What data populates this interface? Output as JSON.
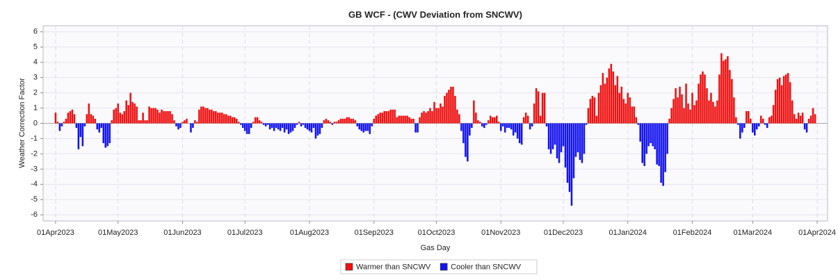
{
  "chart_data": {
    "type": "bar",
    "title": "GB WCF - (CWV Deviation from SNCWV)",
    "xlabel": "Gas Day",
    "ylabel": "Weather Correction Factor",
    "legend": [
      {
        "name": "Warmer than SNCWV",
        "color": "#ee1111"
      },
      {
        "name": "Cooler than SNCWV",
        "color": "#1414ee"
      }
    ],
    "grid": true,
    "xlim": [
      "2023-03-26",
      "2024-04-06"
    ],
    "ylim": [
      -6.4,
      6.4
    ],
    "yticks": [
      -6,
      -5,
      -4,
      -3,
      -2,
      -1,
      0,
      1,
      2,
      3,
      4,
      5,
      6
    ],
    "xticks": [
      {
        "value": "2023-04-01",
        "label": "01Apr2023"
      },
      {
        "value": "2023-05-01",
        "label": "01May2023"
      },
      {
        "value": "2023-06-01",
        "label": "01Jun2023"
      },
      {
        "value": "2023-07-01",
        "label": "01Jul2023"
      },
      {
        "value": "2023-08-01",
        "label": "01Aug2023"
      },
      {
        "value": "2023-09-01",
        "label": "01Sep2023"
      },
      {
        "value": "2023-10-01",
        "label": "01Oct2023"
      },
      {
        "value": "2023-11-01",
        "label": "01Nov2023"
      },
      {
        "value": "2023-12-01",
        "label": "01Dec2023"
      },
      {
        "value": "2024-01-01",
        "label": "01Jan2024"
      },
      {
        "value": "2024-02-01",
        "label": "01Feb2024"
      },
      {
        "value": "2024-03-01",
        "label": "01Mar2024"
      },
      {
        "value": "2024-04-01",
        "label": "01Apr2024"
      }
    ],
    "x": [
      "2023-04-01",
      "2023-04-02",
      "2023-04-03",
      "2023-04-04",
      "2023-04-05",
      "2023-04-06",
      "2023-04-07",
      "2023-04-08",
      "2023-04-09",
      "2023-04-10",
      "2023-04-11",
      "2023-04-12",
      "2023-04-13",
      "2023-04-14",
      "2023-04-15",
      "2023-04-16",
      "2023-04-17",
      "2023-04-18",
      "2023-04-19",
      "2023-04-20",
      "2023-04-21",
      "2023-04-22",
      "2023-04-23",
      "2023-04-24",
      "2023-04-25",
      "2023-04-26",
      "2023-04-27",
      "2023-04-28",
      "2023-04-29",
      "2023-04-30",
      "2023-05-01",
      "2023-05-02",
      "2023-05-03",
      "2023-05-04",
      "2023-05-05",
      "2023-05-06",
      "2023-05-07",
      "2023-05-08",
      "2023-05-09",
      "2023-05-10",
      "2023-05-11",
      "2023-05-12",
      "2023-05-13",
      "2023-05-14",
      "2023-05-15",
      "2023-05-16",
      "2023-05-17",
      "2023-05-18",
      "2023-05-19",
      "2023-05-20",
      "2023-05-21",
      "2023-05-22",
      "2023-05-23",
      "2023-05-24",
      "2023-05-25",
      "2023-05-26",
      "2023-05-27",
      "2023-05-28",
      "2023-05-29",
      "2023-05-30",
      "2023-05-31",
      "2023-06-01",
      "2023-06-02",
      "2023-06-03",
      "2023-06-04",
      "2023-06-05",
      "2023-06-06",
      "2023-06-07",
      "2023-06-08",
      "2023-06-09",
      "2023-06-10",
      "2023-06-11",
      "2023-06-12",
      "2023-06-13",
      "2023-06-14",
      "2023-06-15",
      "2023-06-16",
      "2023-06-17",
      "2023-06-18",
      "2023-06-19",
      "2023-06-20",
      "2023-06-21",
      "2023-06-22",
      "2023-06-23",
      "2023-06-24",
      "2023-06-25",
      "2023-06-26",
      "2023-06-27",
      "2023-06-28",
      "2023-06-29",
      "2023-06-30",
      "2023-07-01",
      "2023-07-02",
      "2023-07-03",
      "2023-07-04",
      "2023-07-05",
      "2023-07-06",
      "2023-07-07",
      "2023-07-08",
      "2023-07-09",
      "2023-07-10",
      "2023-07-11",
      "2023-07-12",
      "2023-07-13",
      "2023-07-14",
      "2023-07-15",
      "2023-07-16",
      "2023-07-17",
      "2023-07-18",
      "2023-07-19",
      "2023-07-20",
      "2023-07-21",
      "2023-07-22",
      "2023-07-23",
      "2023-07-24",
      "2023-07-25",
      "2023-07-26",
      "2023-07-27",
      "2023-07-28",
      "2023-07-29",
      "2023-07-30",
      "2023-07-31",
      "2023-08-01",
      "2023-08-02",
      "2023-08-03",
      "2023-08-04",
      "2023-08-05",
      "2023-08-06",
      "2023-08-07",
      "2023-08-08",
      "2023-08-09",
      "2023-08-10",
      "2023-08-11",
      "2023-08-12",
      "2023-08-13",
      "2023-08-14",
      "2023-08-15",
      "2023-08-16",
      "2023-08-17",
      "2023-08-18",
      "2023-08-19",
      "2023-08-20",
      "2023-08-21",
      "2023-08-22",
      "2023-08-23",
      "2023-08-24",
      "2023-08-25",
      "2023-08-26",
      "2023-08-27",
      "2023-08-28",
      "2023-08-29",
      "2023-08-30",
      "2023-08-31",
      "2023-09-01",
      "2023-09-02",
      "2023-09-03",
      "2023-09-04",
      "2023-09-05",
      "2023-09-06",
      "2023-09-07",
      "2023-09-08",
      "2023-09-09",
      "2023-09-10",
      "2023-09-11",
      "2023-09-12",
      "2023-09-13",
      "2023-09-14",
      "2023-09-15",
      "2023-09-16",
      "2023-09-17",
      "2023-09-18",
      "2023-09-19",
      "2023-09-20",
      "2023-09-21",
      "2023-09-22",
      "2023-09-23",
      "2023-09-24",
      "2023-09-25",
      "2023-09-26",
      "2023-09-27",
      "2023-09-28",
      "2023-09-29",
      "2023-09-30",
      "2023-10-01",
      "2023-10-02",
      "2023-10-03",
      "2023-10-04",
      "2023-10-05",
      "2023-10-06",
      "2023-10-07",
      "2023-10-08",
      "2023-10-09",
      "2023-10-10",
      "2023-10-11",
      "2023-10-12",
      "2023-10-13",
      "2023-10-14",
      "2023-10-15",
      "2023-10-16",
      "2023-10-17",
      "2023-10-18",
      "2023-10-19",
      "2023-10-20",
      "2023-10-21",
      "2023-10-22",
      "2023-10-23",
      "2023-10-24",
      "2023-10-25",
      "2023-10-26",
      "2023-10-27",
      "2023-10-28",
      "2023-10-29",
      "2023-10-30",
      "2023-10-31",
      "2023-11-01",
      "2023-11-02",
      "2023-11-03",
      "2023-11-04",
      "2023-11-05",
      "2023-11-06",
      "2023-11-07",
      "2023-11-08",
      "2023-11-09",
      "2023-11-10",
      "2023-11-11",
      "2023-11-12",
      "2023-11-13",
      "2023-11-14",
      "2023-11-15",
      "2023-11-16",
      "2023-11-17",
      "2023-11-18",
      "2023-11-19",
      "2023-11-20",
      "2023-11-21",
      "2023-11-22",
      "2023-11-23",
      "2023-11-24",
      "2023-11-25",
      "2023-11-26",
      "2023-11-27",
      "2023-11-28",
      "2023-11-29",
      "2023-11-30",
      "2023-12-01",
      "2023-12-02",
      "2023-12-03",
      "2023-12-04",
      "2023-12-05",
      "2023-12-06",
      "2023-12-07",
      "2023-12-08",
      "2023-12-09",
      "2023-12-10",
      "2023-12-11",
      "2023-12-12",
      "2023-12-13",
      "2023-12-14",
      "2023-12-15",
      "2023-12-16",
      "2023-12-17",
      "2023-12-18",
      "2023-12-19",
      "2023-12-20",
      "2023-12-21",
      "2023-12-22",
      "2023-12-23",
      "2023-12-24",
      "2023-12-25",
      "2023-12-26",
      "2023-12-27",
      "2023-12-28",
      "2023-12-29",
      "2023-12-30",
      "2023-12-31",
      "2024-01-01",
      "2024-01-02",
      "2024-01-03",
      "2024-01-04",
      "2024-01-05",
      "2024-01-06",
      "2024-01-07",
      "2024-01-08",
      "2024-01-09",
      "2024-01-10",
      "2024-01-11",
      "2024-01-12",
      "2024-01-13",
      "2024-01-14",
      "2024-01-15",
      "2024-01-16",
      "2024-01-17",
      "2024-01-18",
      "2024-01-19",
      "2024-01-20",
      "2024-01-21",
      "2024-01-22",
      "2024-01-23",
      "2024-01-24",
      "2024-01-25",
      "2024-01-26",
      "2024-01-27",
      "2024-01-28",
      "2024-01-29",
      "2024-01-30",
      "2024-01-31",
      "2024-02-01",
      "2024-02-02",
      "2024-02-03",
      "2024-02-04",
      "2024-02-05",
      "2024-02-06",
      "2024-02-07",
      "2024-02-08",
      "2024-02-09",
      "2024-02-10",
      "2024-02-11",
      "2024-02-12",
      "2024-02-13",
      "2024-02-14",
      "2024-02-15",
      "2024-02-16",
      "2024-02-17",
      "2024-02-18",
      "2024-02-19",
      "2024-02-20",
      "2024-02-21",
      "2024-02-22",
      "2024-02-23",
      "2024-02-24",
      "2024-02-25",
      "2024-02-26",
      "2024-02-27",
      "2024-02-28",
      "2024-02-29",
      "2024-03-01",
      "2024-03-02",
      "2024-03-03",
      "2024-03-04",
      "2024-03-05",
      "2024-03-06",
      "2024-03-07",
      "2024-03-08",
      "2024-03-09",
      "2024-03-10",
      "2024-03-11",
      "2024-03-12",
      "2024-03-13",
      "2024-03-14",
      "2024-03-15",
      "2024-03-16",
      "2024-03-17",
      "2024-03-18",
      "2024-03-19",
      "2024-03-20",
      "2024-03-21",
      "2024-03-22",
      "2024-03-23",
      "2024-03-24",
      "2024-03-25",
      "2024-03-26",
      "2024-03-27",
      "2024-03-28",
      "2024-03-29",
      "2024-03-30",
      "2024-03-31"
    ],
    "values": [
      0.7,
      0.1,
      -0.5,
      -0.2,
      0.1,
      0.3,
      0.7,
      0.8,
      0.9,
      0.6,
      -0.3,
      -1.7,
      -0.9,
      -1.5,
      -0.2,
      0.6,
      1.3,
      0.6,
      0.5,
      0.3,
      -0.4,
      -0.6,
      -0.3,
      -1.3,
      -1.6,
      -1.5,
      -1.3,
      0.2,
      0.9,
      1.0,
      1.3,
      0.7,
      0.6,
      0.8,
      1.5,
      1.2,
      2.0,
      1.4,
      1.3,
      1.1,
      0.2,
      0.2,
      0.7,
      0.2,
      0.2,
      1.1,
      1.0,
      1.0,
      1.0,
      0.9,
      0.7,
      0.9,
      0.8,
      0.8,
      0.8,
      0.8,
      0.6,
      0.2,
      -0.2,
      -0.4,
      -0.3,
      0.1,
      0.2,
      0.3,
      0.0,
      -0.6,
      -0.3,
      0.2,
      0.1,
      0.9,
      1.1,
      1.1,
      1.0,
      1.0,
      0.9,
      0.9,
      0.8,
      0.8,
      0.7,
      0.7,
      0.7,
      0.6,
      0.6,
      0.5,
      0.5,
      0.4,
      0.4,
      0.3,
      0.1,
      -0.1,
      -0.3,
      -0.5,
      -0.7,
      -0.7,
      -0.3,
      0.1,
      0.4,
      0.4,
      0.2,
      0.1,
      -0.1,
      -0.2,
      -0.1,
      -0.4,
      -0.3,
      -0.5,
      -0.3,
      -0.4,
      -0.5,
      -0.3,
      -0.6,
      -0.4,
      -0.7,
      -0.6,
      -0.5,
      -0.3,
      -0.1,
      0.1,
      -0.2,
      -0.1,
      -0.3,
      -0.4,
      -0.5,
      -0.6,
      -0.3,
      -1.0,
      -0.8,
      -0.7,
      -0.3,
      0.2,
      0.3,
      0.2,
      0.1,
      -0.1,
      0.1,
      0.1,
      0.2,
      0.3,
      0.3,
      0.3,
      0.4,
      0.4,
      0.3,
      0.3,
      0.2,
      -0.2,
      -0.4,
      -0.5,
      -0.6,
      -0.5,
      -0.5,
      -0.7,
      -0.2,
      0.3,
      0.5,
      0.6,
      0.7,
      0.7,
      0.8,
      0.8,
      0.8,
      0.9,
      0.9,
      0.9,
      0.4,
      0.5,
      0.5,
      0.5,
      0.5,
      0.5,
      0.4,
      0.3,
      0.3,
      -0.6,
      -0.6,
      0.4,
      0.7,
      0.8,
      0.7,
      0.8,
      1.0,
      0.8,
      1.4,
      1.0,
      1.0,
      1.3,
      1.1,
      1.8,
      2.0,
      2.2,
      2.4,
      2.4,
      1.8,
      0.9,
      0.6,
      -0.5,
      -1.3,
      -2.2,
      -2.5,
      -0.8,
      -0.3,
      1.5,
      0.7,
      0.2,
      0.1,
      -0.2,
      -0.3,
      -0.1,
      0.2,
      0.5,
      0.4,
      0.4,
      0.5,
      0.1,
      -0.5,
      -0.2,
      -0.6,
      -0.3,
      -0.3,
      -0.4,
      -0.8,
      -0.6,
      -1.0,
      -1.3,
      -1.4,
      0.4,
      0.7,
      0.5,
      -0.4,
      -0.2,
      1.3,
      2.3,
      2.1,
      0.5,
      2.0,
      2.0,
      -0.2,
      -1.7,
      -2.0,
      -1.7,
      -1.4,
      -2.3,
      -2.6,
      -1.9,
      -1.5,
      -2.9,
      -3.9,
      -4.5,
      -5.4,
      -3.6,
      -2.2,
      -1.9,
      -2.4,
      -2.6,
      -2.0,
      -0.1,
      1.0,
      1.6,
      1.8,
      1.7,
      0.5,
      2.0,
      2.5,
      3.3,
      2.6,
      3.0,
      3.6,
      3.9,
      3.4,
      2.5,
      3.1,
      2.0,
      2.4,
      1.6,
      1.3,
      2.0,
      1.7,
      1.1,
      1.1,
      0.4,
      -0.1,
      -1.2,
      -2.6,
      -2.8,
      -2.0,
      -1.5,
      -1.3,
      -1.5,
      -1.7,
      -2.7,
      -2.8,
      -3.9,
      -4.1,
      -3.2,
      -2.0,
      0.3,
      1.0,
      1.6,
      2.3,
      1.7,
      2.4,
      1.9,
      1.0,
      2.6,
      1.3,
      0.9,
      2.0,
      1.2,
      1.5,
      2.6,
      3.2,
      3.4,
      3.2,
      2.3,
      1.5,
      2.0,
      1.4,
      1.1,
      1.5,
      3.2,
      4.6,
      4.1,
      4.2,
      4.4,
      3.5,
      2.9,
      1.7,
      0.4,
      -0.1,
      -1.0,
      -0.6,
      -0.3,
      0.8,
      0.8,
      0.3,
      -0.6,
      -0.8,
      -0.4,
      -0.2,
      0.5,
      0.3,
      -0.1,
      -0.3,
      0.4,
      0.5,
      1.2,
      2.2,
      2.9,
      3.0,
      2.5,
      3.1,
      3.2,
      3.3,
      2.7,
      1.5,
      0.6,
      0.3,
      0.7,
      0.5,
      0.7,
      -0.4,
      -0.6,
      0.3,
      0.5,
      1.0,
      0.6
    ]
  }
}
